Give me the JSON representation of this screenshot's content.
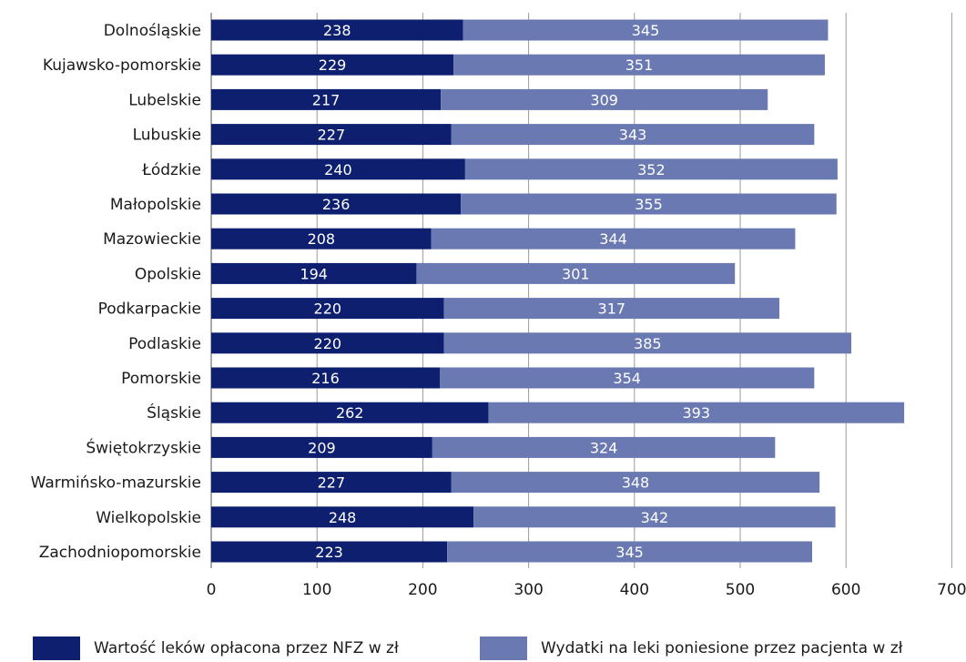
{
  "chart_data": {
    "type": "bar",
    "orientation": "horizontal",
    "stacked": true,
    "categories": [
      "Dolnośląskie",
      "Kujawsko-pomorskie",
      "Lubelskie",
      "Lubuskie",
      "Łódzkie",
      "Małopolskie",
      "Mazowieckie",
      "Opolskie",
      "Podkarpackie",
      "Podlaskie",
      "Pomorskie",
      "Śląskie",
      "Świętokrzyskie",
      "Warmińsko-mazurskie",
      "Wielkopolskie",
      "Zachodniopomorskie"
    ],
    "series": [
      {
        "name": "Wartość leków opłacona przez NFZ w zł",
        "color": "#0d1f6e",
        "values": [
          238,
          229,
          217,
          227,
          240,
          236,
          208,
          194,
          220,
          220,
          216,
          262,
          209,
          227,
          248,
          223
        ]
      },
      {
        "name": "Wydatki na leki poniesione przez pacjenta w zł",
        "color": "#6a79b1",
        "values": [
          345,
          351,
          309,
          343,
          352,
          355,
          344,
          301,
          317,
          385,
          354,
          393,
          324,
          348,
          342,
          345
        ]
      }
    ],
    "xlim": [
      0,
      700
    ],
    "xticks": [
      0,
      100,
      200,
      300,
      400,
      500,
      600,
      700
    ],
    "grid": true,
    "legend": "bottom"
  }
}
